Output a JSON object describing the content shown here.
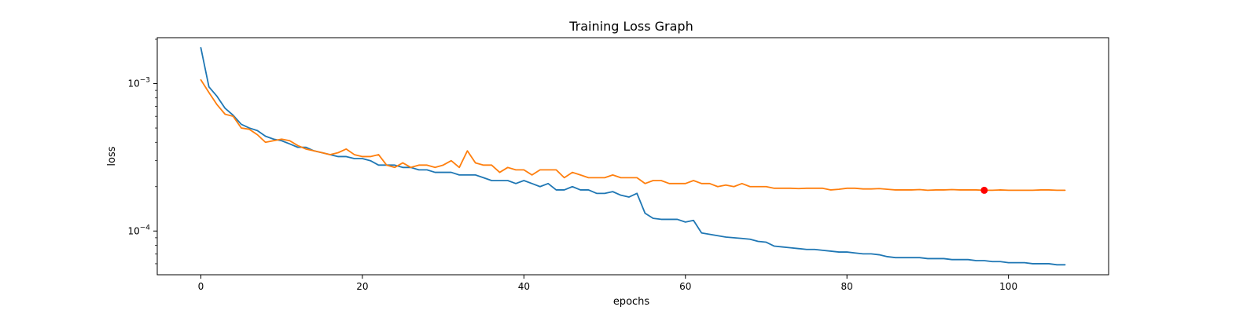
{
  "chart_data": {
    "type": "line",
    "title": "Training Loss Graph",
    "xlabel": "epochs",
    "ylabel": "loss",
    "yscale": "log",
    "xlim": [
      -5.4,
      112.4
    ],
    "ylim": [
      5.05e-05,
      0.00205
    ],
    "xticks": [
      0,
      20,
      40,
      60,
      80,
      100
    ],
    "yticks": [
      {
        "value": 0.0001,
        "base": "10",
        "exp": "−4"
      },
      {
        "value": 0.001,
        "base": "10",
        "exp": "−3"
      }
    ],
    "grid": false,
    "series": [
      {
        "color": "#1f77b4",
        "values": [
          0.00175,
          0.00095,
          0.00082,
          0.00068,
          0.00061,
          0.00053,
          0.0005,
          0.00048,
          0.00044,
          0.00042,
          0.00041,
          0.00039,
          0.00037,
          0.00037,
          0.00035,
          0.00034,
          0.00033,
          0.00032,
          0.00032,
          0.00031,
          0.00031,
          0.0003,
          0.00028,
          0.00028,
          0.00028,
          0.00027,
          0.00027,
          0.00026,
          0.00026,
          0.00025,
          0.00025,
          0.00025,
          0.00024,
          0.00024,
          0.00024,
          0.00023,
          0.00022,
          0.00022,
          0.00022,
          0.00021,
          0.00022,
          0.00021,
          0.0002,
          0.00021,
          0.00019,
          0.00019,
          0.0002,
          0.00019,
          0.00019,
          0.00018,
          0.00018,
          0.000185,
          0.000175,
          0.00017,
          0.00018,
          0.000132,
          0.000122,
          0.00012,
          0.00012,
          0.00012,
          0.000115,
          0.000118,
          9.7e-05,
          9.5e-05,
          9.3e-05,
          9.1e-05,
          9e-05,
          8.9e-05,
          8.8e-05,
          8.5e-05,
          8.4e-05,
          7.9e-05,
          7.8e-05,
          7.7e-05,
          7.6e-05,
          7.5e-05,
          7.5e-05,
          7.4e-05,
          7.3e-05,
          7.2e-05,
          7.2e-05,
          7.1e-05,
          7e-05,
          7e-05,
          6.9e-05,
          6.7e-05,
          6.6e-05,
          6.6e-05,
          6.6e-05,
          6.6e-05,
          6.5e-05,
          6.5e-05,
          6.5e-05,
          6.4e-05,
          6.4e-05,
          6.4e-05,
          6.3e-05,
          6.3e-05,
          6.2e-05,
          6.2e-05,
          6.1e-05,
          6.1e-05,
          6.1e-05,
          6e-05,
          6e-05,
          6e-05,
          5.9e-05,
          5.9e-05
        ]
      },
      {
        "color": "#ff7f0e",
        "values": [
          0.00106,
          0.00087,
          0.00072,
          0.00062,
          0.0006,
          0.0005,
          0.00049,
          0.00045,
          0.0004,
          0.00041,
          0.00042,
          0.00041,
          0.00038,
          0.00036,
          0.00035,
          0.00034,
          0.00033,
          0.00034,
          0.00036,
          0.00033,
          0.00032,
          0.00032,
          0.00033,
          0.00028,
          0.00027,
          0.00029,
          0.00027,
          0.00028,
          0.00028,
          0.00027,
          0.00028,
          0.0003,
          0.00027,
          0.00035,
          0.00029,
          0.00028,
          0.00028,
          0.00025,
          0.00027,
          0.00026,
          0.00026,
          0.00024,
          0.00026,
          0.00026,
          0.00026,
          0.00023,
          0.00025,
          0.00024,
          0.00023,
          0.00023,
          0.00023,
          0.00024,
          0.00023,
          0.00023,
          0.00023,
          0.00021,
          0.00022,
          0.00022,
          0.00021,
          0.00021,
          0.00021,
          0.00022,
          0.00021,
          0.00021,
          0.0002,
          0.000205,
          0.0002,
          0.00021,
          0.0002,
          0.0002,
          0.0002,
          0.000195,
          0.000195,
          0.000195,
          0.000194,
          0.000195,
          0.000195,
          0.000195,
          0.00019,
          0.000192,
          0.000195,
          0.000195,
          0.000193,
          0.000193,
          0.000194,
          0.000192,
          0.00019,
          0.00019,
          0.00019,
          0.000191,
          0.000189,
          0.00019,
          0.00019,
          0.000191,
          0.00019,
          0.00019,
          0.00019,
          0.000189,
          0.000189,
          0.00019,
          0.000189,
          0.000189,
          0.000189,
          0.000189,
          0.00019,
          0.00019,
          0.000189,
          0.000189
        ]
      }
    ],
    "markers": [
      {
        "x": 97,
        "y": 0.000189,
        "color": "#ff0000"
      }
    ]
  }
}
